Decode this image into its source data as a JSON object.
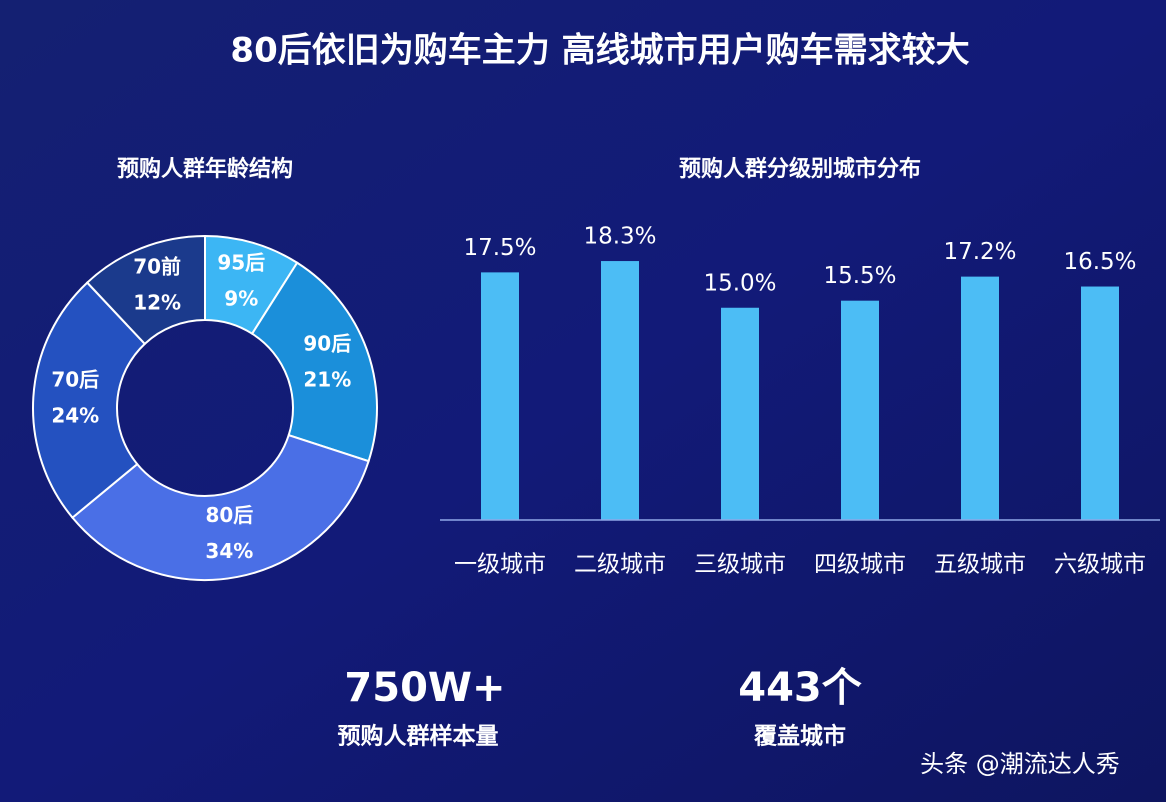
{
  "title": "80后依旧为购车主力  高线城市用户购车需求较大",
  "chart_data": [
    {
      "type": "donut",
      "title": "预购人群年龄结构",
      "categories": [
        "95后",
        "90后",
        "80后",
        "70后",
        "70前"
      ],
      "values": [
        9,
        21,
        34,
        24,
        12
      ],
      "value_labels": [
        "9%",
        "21%",
        "34%",
        "24%",
        "12%"
      ],
      "colors": [
        "#3cb6f4",
        "#1b8fda",
        "#4a6fe6",
        "#2451c0",
        "#1b3a8c"
      ]
    },
    {
      "type": "bar",
      "title": "预购人群分级别城市分布",
      "categories": [
        "一级城市",
        "二级城市",
        "三级城市",
        "四级城市",
        "五级城市",
        "六级城市"
      ],
      "values": [
        17.5,
        18.3,
        15.0,
        15.5,
        17.2,
        16.5
      ],
      "value_labels": [
        "17.5%",
        "18.3%",
        "15.0%",
        "15.5%",
        "17.2%",
        "16.5%"
      ],
      "color": "#4cbdf5",
      "ylim": [
        0,
        20
      ]
    }
  ],
  "stats": [
    {
      "value": "750W+",
      "label": "预购人群样本量"
    },
    {
      "value": "443个",
      "label": "覆盖城市"
    }
  ],
  "watermark": "头条 @潮流达人秀"
}
